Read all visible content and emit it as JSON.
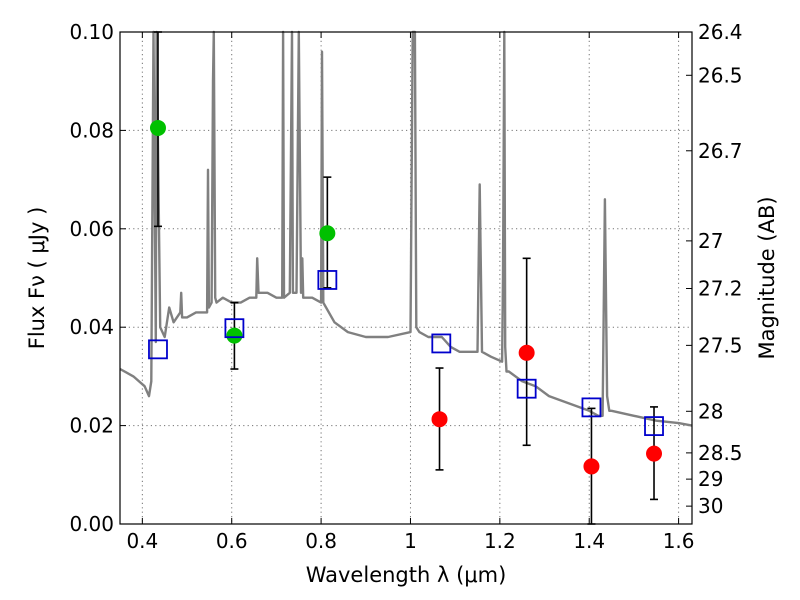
{
  "chart_data": {
    "type": "scatter",
    "title": "",
    "xlabel": "Wavelength  λ (μm)",
    "ylabel": "Flux  Fν  ( μJy )",
    "ylabel_right": "Magnitude (AB)",
    "xlim": [
      0.35,
      1.63
    ],
    "ylim": [
      0.0,
      0.1
    ],
    "grid": true,
    "x_ticks": [
      0.4,
      0.6,
      0.8,
      1.0,
      1.2,
      1.4,
      1.6
    ],
    "x_tick_labels": [
      "0.4",
      "0.6",
      "0.8",
      "1",
      "1.2",
      "1.4",
      "1.6"
    ],
    "y_ticks": [
      0.0,
      0.02,
      0.04,
      0.06,
      0.08,
      0.1
    ],
    "y_tick_labels": [
      "0.00",
      "0.02",
      "0.04",
      "0.06",
      "0.08",
      "0.10"
    ],
    "right_ticks": [
      {
        "label": "26.4",
        "mag": 26.4
      },
      {
        "label": "26.5",
        "mag": 26.5
      },
      {
        "label": "26.7",
        "mag": 26.7
      },
      {
        "label": "27",
        "mag": 27.0
      },
      {
        "label": "27.2",
        "mag": 27.2
      },
      {
        "label": "27.5",
        "mag": 27.5
      },
      {
        "label": "28",
        "mag": 28.0
      },
      {
        "label": "28.5",
        "mag": 28.5
      },
      {
        "label": "29",
        "mag": 29.0
      },
      {
        "label": "30",
        "mag": 30.0
      }
    ],
    "series": [
      {
        "marker": "circle",
        "color": "#00c000",
        "points": [
          {
            "x": 0.435,
            "y": 0.0805,
            "err_low": 0.0605,
            "err_high": 0.1
          },
          {
            "x": 0.606,
            "y": 0.0383,
            "err_low": 0.0315,
            "err_high": 0.045
          },
          {
            "x": 0.814,
            "y": 0.0591,
            "err_low": 0.048,
            "err_high": 0.0705
          }
        ]
      },
      {
        "marker": "circle",
        "color": "#ff0000",
        "points": [
          {
            "x": 1.065,
            "y": 0.0213,
            "err_low": 0.011,
            "err_high": 0.0317
          },
          {
            "x": 1.26,
            "y": 0.0348,
            "err_low": 0.016,
            "err_high": 0.054
          },
          {
            "x": 1.405,
            "y": 0.0117,
            "err_low": 0.0,
            "err_high": 0.0235
          },
          {
            "x": 1.545,
            "y": 0.0143,
            "err_low": 0.005,
            "err_high": 0.0238
          }
        ]
      },
      {
        "marker": "square-open",
        "color": "#0000cc",
        "points": [
          {
            "x": 0.435,
            "y": 0.0355
          },
          {
            "x": 0.606,
            "y": 0.0398
          },
          {
            "x": 0.814,
            "y": 0.0496
          },
          {
            "x": 1.069,
            "y": 0.0367
          },
          {
            "x": 1.26,
            "y": 0.0275
          },
          {
            "x": 1.405,
            "y": 0.0237
          },
          {
            "x": 1.545,
            "y": 0.0199
          }
        ]
      },
      {
        "type": "line",
        "color": "#808080",
        "x": [
          0.35,
          0.38,
          0.405,
          0.415,
          0.42,
          0.425,
          0.43,
          0.432,
          0.44,
          0.45,
          0.46,
          0.47,
          0.485,
          0.487,
          0.489,
          0.5,
          0.52,
          0.545,
          0.547,
          0.549,
          0.555,
          0.558,
          0.56,
          0.563,
          0.566,
          0.58,
          0.6,
          0.62,
          0.64,
          0.655,
          0.657,
          0.66,
          0.68,
          0.7,
          0.713,
          0.715,
          0.717,
          0.73,
          0.735,
          0.737,
          0.745,
          0.75,
          0.755,
          0.758,
          0.76,
          0.78,
          0.8,
          0.802,
          0.805,
          0.83,
          0.86,
          0.9,
          0.95,
          1.0,
          1.005,
          1.01,
          1.013,
          1.02,
          1.04,
          1.07,
          1.09,
          1.11,
          1.13,
          1.15,
          1.155,
          1.16,
          1.18,
          1.205,
          1.207,
          1.21,
          1.212,
          1.215,
          1.22,
          1.25,
          1.28,
          1.31,
          1.34,
          1.37,
          1.4,
          1.42,
          1.43,
          1.435,
          1.44,
          1.445,
          1.45,
          1.5,
          1.55,
          1.6,
          1.63
        ],
        "y": [
          0.0315,
          0.03,
          0.028,
          0.026,
          0.029,
          0.1,
          0.037,
          0.1,
          0.04,
          0.038,
          0.044,
          0.041,
          0.043,
          0.047,
          0.042,
          0.042,
          0.043,
          0.043,
          0.072,
          0.044,
          0.045,
          0.09,
          0.1,
          0.046,
          0.045,
          0.046,
          0.045,
          0.045,
          0.046,
          0.046,
          0.054,
          0.047,
          0.047,
          0.046,
          0.046,
          0.1,
          0.046,
          0.047,
          0.1,
          0.047,
          0.047,
          0.1,
          0.047,
          0.054,
          0.046,
          0.046,
          0.045,
          0.096,
          0.045,
          0.041,
          0.039,
          0.038,
          0.038,
          0.039,
          0.1,
          0.1,
          0.04,
          0.039,
          0.038,
          0.038,
          0.036,
          0.035,
          0.035,
          0.035,
          0.069,
          0.035,
          0.034,
          0.033,
          0.05,
          0.1,
          0.036,
          0.031,
          0.031,
          0.029,
          0.028,
          0.026,
          0.025,
          0.024,
          0.023,
          0.022,
          0.022,
          0.066,
          0.026,
          0.023,
          0.023,
          0.022,
          0.021,
          0.0205,
          0.02
        ]
      }
    ]
  }
}
